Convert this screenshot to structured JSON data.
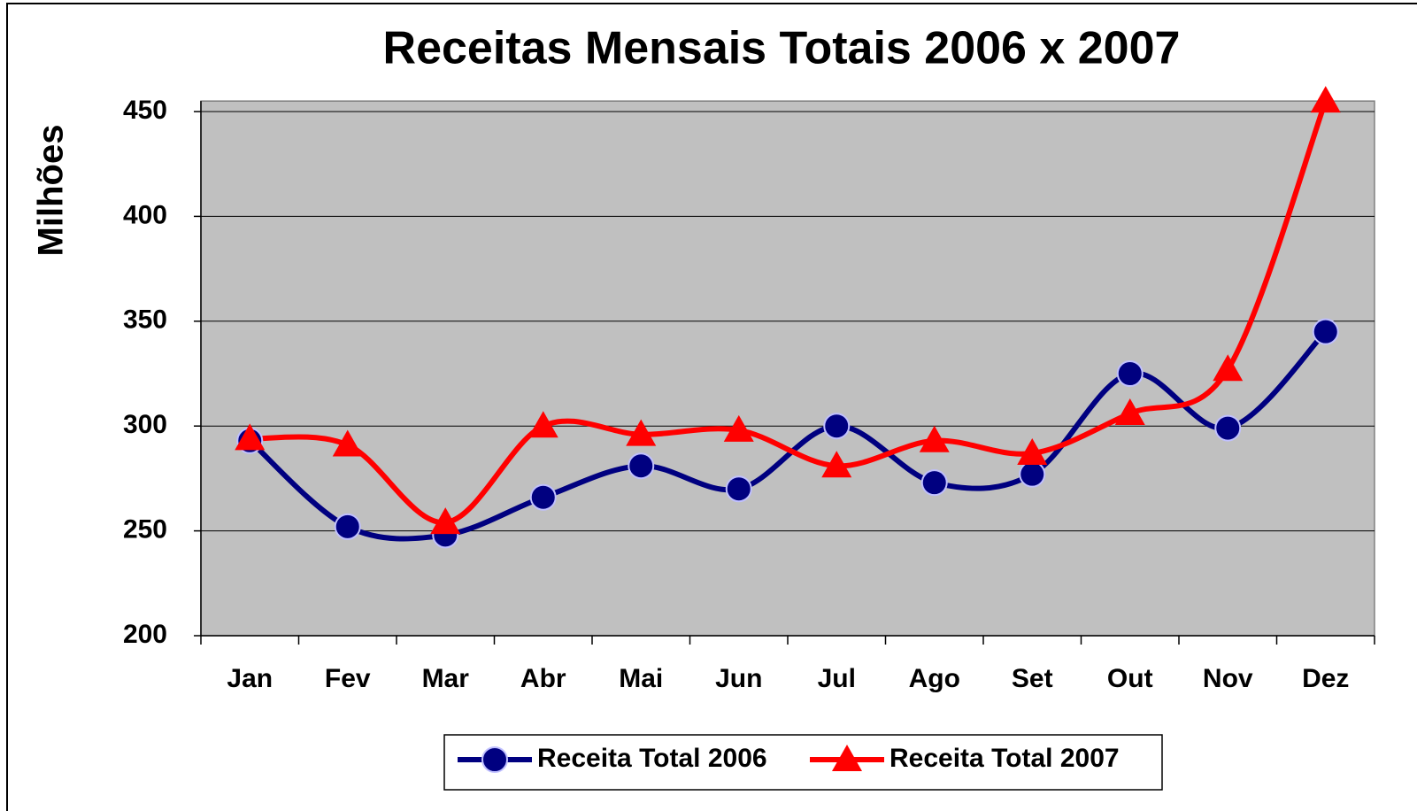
{
  "chart_data": {
    "type": "line",
    "title": "Receitas Mensais Totais 2006 x 2007",
    "y_label": "Milhões",
    "categories": [
      "Jan",
      "Fev",
      "Mar",
      "Abr",
      "Mai",
      "Jun",
      "Jul",
      "Ago",
      "Set",
      "Out",
      "Nov",
      "Dez"
    ],
    "series": [
      {
        "name": "Receita Total 2006",
        "color": "#000080",
        "marker": "circle",
        "values": [
          293,
          252,
          248,
          266,
          281,
          270,
          300,
          273,
          277,
          325,
          299,
          345
        ]
      },
      {
        "name": "Receita Total 2007",
        "color": "#ff0000",
        "marker": "triangle",
        "values": [
          294,
          291,
          254,
          300,
          296,
          298,
          281,
          293,
          287,
          306,
          327,
          455
        ]
      }
    ],
    "ylim": [
      200,
      455
    ],
    "yticks": [
      200,
      250,
      300,
      350,
      400,
      450
    ],
    "grid": true,
    "smooth": true,
    "legend": "bottom"
  }
}
